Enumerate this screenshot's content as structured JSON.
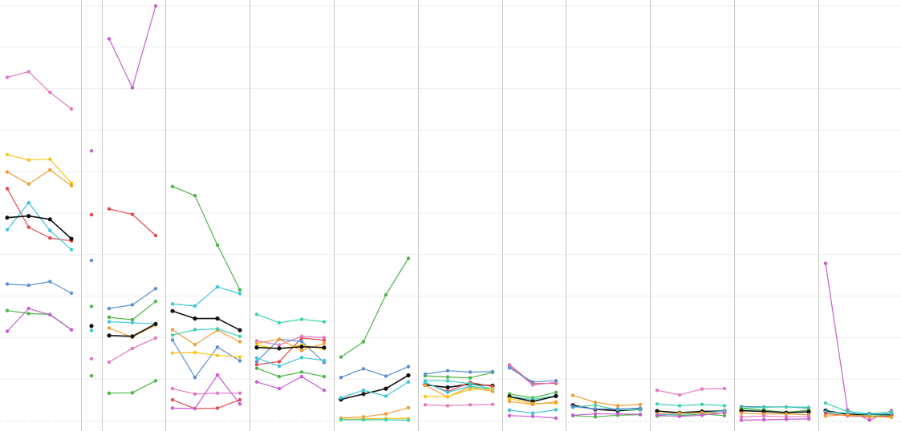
{
  "colors": {
    "pink": "#e377c2",
    "yellow": "#f5c518",
    "orange": "#f39c34",
    "red": "#e5484d",
    "teal": "#3ec6d6",
    "blue": "#5b8fd0",
    "green": "#4fb548",
    "purple": "#c45ed0",
    "mint": "#3fd0b0",
    "black": "#111111",
    "grid": "#eeeeee",
    "divider": "#c8c8c8",
    "baseline": "#cccccc"
  },
  "chart_data": {
    "type": "line",
    "title": "",
    "xlabel": "",
    "ylabel": "",
    "ylim": [
      0,
      100
    ],
    "grid": true,
    "legend": "none",
    "panels": [
      {
        "series": [
          {
            "color": "pink",
            "values": [
              82.7,
              84.1,
              79.1,
              75.1
            ]
          },
          {
            "color": "yellow",
            "values": [
              64.1,
              62.8,
              63.0,
              57.2
            ]
          },
          {
            "color": "orange",
            "values": [
              59.9,
              57.0,
              60.4,
              56.6
            ]
          },
          {
            "color": "red",
            "values": [
              55.9,
              46.6,
              44.0,
              43.3
            ]
          },
          {
            "color": "teal",
            "values": [
              46.0,
              52.5,
              45.8,
              41.2
            ]
          },
          {
            "color": "black",
            "values": [
              48.9,
              49.3,
              48.5,
              43.8
            ]
          },
          {
            "color": "blue",
            "values": [
              32.9,
              32.6,
              33.5,
              30.7
            ]
          },
          {
            "color": "green",
            "values": [
              26.5,
              25.8,
              25.6,
              21.9
            ]
          },
          {
            "color": "purple",
            "values": [
              21.5,
              27.0,
              25.5,
              21.9
            ]
          }
        ]
      },
      {
        "series": [
          {
            "color": "purple",
            "values": [
              65.0
            ]
          },
          {
            "color": "red",
            "values": [
              49.6
            ]
          },
          {
            "color": "blue",
            "values": [
              38.6
            ]
          },
          {
            "color": "green",
            "values": [
              27.5
            ]
          },
          {
            "color": "black",
            "values": [
              22.8
            ]
          },
          {
            "color": "teal",
            "values": [
              21.7
            ]
          },
          {
            "color": "pink",
            "values": [
              14.9
            ]
          },
          {
            "color": "green",
            "values": [
              10.8
            ]
          }
        ]
      },
      {
        "series": [
          {
            "color": "purple",
            "values": [
              92.0,
              80.2,
              99.9
            ]
          },
          {
            "color": "red",
            "values": [
              51.0,
              49.7,
              44.6
            ]
          },
          {
            "color": "blue",
            "values": [
              27.0,
              27.9,
              31.8
            ]
          },
          {
            "color": "green",
            "values": [
              24.9,
              24.3,
              28.7
            ]
          },
          {
            "color": "teal",
            "values": [
              23.8,
              23.6,
              23.3
            ]
          },
          {
            "color": "orange",
            "values": [
              22.3,
              20.1,
              23.0
            ]
          },
          {
            "color": "black",
            "values": [
              20.5,
              20.3,
              23.3
            ]
          },
          {
            "color": "pink",
            "values": [
              14.1,
              17.4,
              19.9
            ]
          },
          {
            "color": "green",
            "values": [
              6.6,
              6.7,
              9.6
            ]
          }
        ]
      },
      {
        "series": [
          {
            "color": "green",
            "values": [
              56.4,
              54.2,
              42.3,
              31.5
            ]
          },
          {
            "color": "teal",
            "values": [
              28.1,
              27.6,
              32.2,
              30.6
            ]
          },
          {
            "color": "black",
            "values": [
              26.4,
              24.6,
              24.6,
              21.8
            ]
          },
          {
            "color": "orange",
            "values": [
              21.9,
              18.3,
              21.8,
              19.0
            ]
          },
          {
            "color": "mint",
            "values": [
              20.6,
              21.9,
              22.1,
              20.3
            ]
          },
          {
            "color": "blue",
            "values": [
              19.4,
              10.4,
              17.7,
              14.4
            ]
          },
          {
            "color": "yellow",
            "values": [
              16.3,
              16.4,
              15.7,
              15.3
            ]
          },
          {
            "color": "pink",
            "values": [
              7.7,
              6.4,
              6.6,
              6.6
            ]
          },
          {
            "color": "red",
            "values": [
              5.0,
              2.9,
              3.0,
              5.0
            ]
          },
          {
            "color": "purple",
            "values": [
              3.0,
              2.9,
              11.0,
              4.0
            ]
          }
        ]
      },
      {
        "series": [
          {
            "color": "mint",
            "values": [
              25.6,
              23.6,
              24.4,
              23.8
            ]
          },
          {
            "color": "red",
            "values": [
              13.5,
              14.2,
              19.9,
              19.4
            ]
          },
          {
            "color": "pink",
            "values": [
              19.2,
              18.2,
              20.3,
              20.0
            ]
          },
          {
            "color": "blue",
            "values": [
              14.2,
              19.6,
              19.1,
              14.0
            ]
          },
          {
            "color": "orange",
            "values": [
              18.6,
              19.6,
              16.9,
              18.6
            ]
          },
          {
            "color": "yellow",
            "values": [
              18.1,
              17.3,
              18.2,
              17.3
            ]
          },
          {
            "color": "black",
            "values": [
              17.6,
              17.4,
              17.8,
              17.6
            ]
          },
          {
            "color": "teal",
            "values": [
              15.1,
              13.1,
              15.2,
              14.5
            ]
          },
          {
            "color": "green",
            "values": [
              12.6,
              10.6,
              11.7,
              10.6
            ]
          },
          {
            "color": "purple",
            "values": [
              9.3,
              7.7,
              10.6,
              7.3
            ]
          }
        ]
      },
      {
        "series": [
          {
            "color": "green",
            "values": [
              15.3,
              19.0,
              30.3,
              39.1
            ]
          },
          {
            "color": "blue",
            "values": [
              10.4,
              12.5,
              10.7,
              13.0
            ]
          },
          {
            "color": "black",
            "values": [
              5.1,
              6.4,
              7.7,
              10.9
            ]
          },
          {
            "color": "teal",
            "values": [
              5.5,
              7.3,
              5.9,
              9.3
            ]
          },
          {
            "color": "orange",
            "values": [
              0.6,
              0.9,
              1.6,
              3.1
            ]
          },
          {
            "color": "yellow",
            "values": [
              0.3,
              0.4,
              0.5,
              0.5
            ]
          },
          {
            "color": "mint",
            "values": [
              0.2,
              0.2,
              0.2,
              0.1
            ]
          }
        ]
      },
      {
        "series": [
          {
            "color": "green",
            "values": [
              10.8,
              10.5,
              10.3,
              11.6
            ]
          },
          {
            "color": "blue",
            "values": [
              11.2,
              12.0,
              11.7,
              11.8
            ]
          },
          {
            "color": "black",
            "values": [
              8.6,
              8.0,
              8.8,
              8.4
            ]
          },
          {
            "color": "red",
            "values": [
              9.1,
              7.0,
              9.2,
              8.2
            ]
          },
          {
            "color": "orange",
            "values": [
              8.5,
              5.7,
              8.1,
              7.0
            ]
          },
          {
            "color": "mint",
            "values": [
              9.6,
              9.6,
              8.9,
              7.6
            ]
          },
          {
            "color": "teal",
            "values": [
              9.2,
              6.8,
              8.3,
              7.5
            ]
          },
          {
            "color": "yellow",
            "values": [
              5.8,
              5.8,
              7.5,
              7.6
            ]
          },
          {
            "color": "pink",
            "values": [
              3.8,
              3.6,
              3.8,
              3.9
            ]
          }
        ]
      },
      {
        "series": [
          {
            "color": "red",
            "values": [
              13.4,
              8.9,
              9.0
            ]
          },
          {
            "color": "pink",
            "values": [
              13.2,
              8.6,
              9.2
            ]
          },
          {
            "color": "blue",
            "values": [
              12.7,
              9.3,
              9.6
            ]
          },
          {
            "color": "green",
            "values": [
              6.4,
              5.5,
              6.8
            ]
          },
          {
            "color": "mint",
            "values": [
              5.8,
              5.1,
              6.0
            ]
          },
          {
            "color": "black",
            "values": [
              5.8,
              4.6,
              5.9
            ]
          },
          {
            "color": "yellow",
            "values": [
              5.3,
              4.1,
              4.2
            ]
          },
          {
            "color": "orange",
            "values": [
              4.6,
              3.9,
              4.5
            ]
          },
          {
            "color": "teal",
            "values": [
              2.5,
              1.8,
              2.6
            ]
          },
          {
            "color": "purple",
            "values": [
              1.2,
              1.0,
              0.6
            ]
          }
        ]
      },
      {
        "series": [
          {
            "color": "orange",
            "values": [
              6.1,
              4.4,
              3.6,
              3.9
            ]
          },
          {
            "color": "black",
            "values": [
              3.7,
              2.7,
              2.4,
              2.7
            ]
          },
          {
            "color": "mint",
            "values": [
              3.2,
              3.7,
              2.6,
              2.6
            ]
          },
          {
            "color": "blue",
            "values": [
              3.4,
              2.8,
              2.8,
              3.0
            ]
          },
          {
            "color": "green",
            "values": [
              1.2,
              0.9,
              1.3,
              1.4
            ]
          },
          {
            "color": "purple",
            "values": [
              1.3,
              1.6,
              1.6,
              1.5
            ]
          }
        ]
      },
      {
        "series": [
          {
            "color": "pink",
            "values": [
              7.3,
              6.2,
              7.6,
              7.7
            ]
          },
          {
            "color": "mint",
            "values": [
              4.0,
              3.6,
              3.9,
              3.6
            ]
          },
          {
            "color": "black",
            "values": [
              2.3,
              1.9,
              2.2,
              2.3
            ]
          },
          {
            "color": "teal",
            "values": [
              1.4,
              1.5,
              1.9,
              2.3
            ]
          },
          {
            "color": "green",
            "values": [
              1.1,
              1.2,
              1.6,
              1.2
            ]
          },
          {
            "color": "orange",
            "values": [
              1.6,
              1.8,
              1.9,
              1.8
            ]
          },
          {
            "color": "purple",
            "values": [
              1.3,
              1.0,
              1.3,
              1.9
            ]
          }
        ]
      },
      {
        "series": [
          {
            "color": "blue",
            "values": [
              3.4,
              3.3,
              3.3,
              3.0
            ]
          },
          {
            "color": "mint",
            "values": [
              3.0,
              3.2,
              3.3,
              3.2
            ]
          },
          {
            "color": "green",
            "values": [
              2.9,
              2.5,
              2.0,
              2.5
            ]
          },
          {
            "color": "black",
            "values": [
              2.4,
              2.2,
              1.9,
              2.1
            ]
          },
          {
            "color": "orange",
            "values": [
              1.8,
              1.6,
              1.6,
              1.4
            ]
          },
          {
            "color": "pink",
            "values": [
              0.9,
              1.1,
              0.9,
              1.0
            ]
          },
          {
            "color": "purple",
            "values": [
              0.1,
              0.2,
              0.3,
              0.4
            ]
          }
        ]
      },
      {
        "series": [
          {
            "color": "purple",
            "values": [
              37.9,
              2.6,
              0.1,
              2.4
            ]
          },
          {
            "color": "mint",
            "values": [
              4.2,
              2.2,
              1.7,
              2.0
            ]
          },
          {
            "color": "green",
            "values": [
              2.0,
              1.6,
              1.1,
              1.3
            ]
          },
          {
            "color": "black",
            "values": [
              2.4,
              1.5,
              1.5,
              1.5
            ]
          },
          {
            "color": "teal",
            "values": [
              2.1,
              1.8,
              1.5,
              1.6
            ]
          },
          {
            "color": "red",
            "values": [
              1.7,
              1.2,
              0.9,
              1.1
            ]
          },
          {
            "color": "orange",
            "values": [
              1.1,
              1.4,
              1.0,
              0.8
            ]
          }
        ]
      }
    ]
  }
}
